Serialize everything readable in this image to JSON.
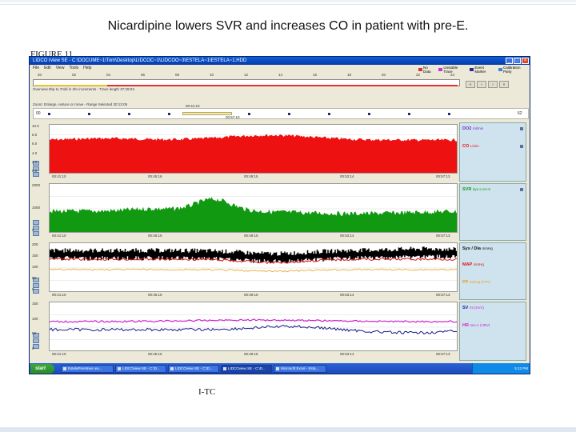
{
  "slide": {
    "title": "Nicardipine lowers SVR and increases CO in patient with pre-E.",
    "figure_label": "FIGURE 11",
    "footer": "I-TC"
  },
  "window": {
    "title": "LIDCO rview SE - C:\\DOCUME~1\\Tom\\Desktop\\LIDCOC~1\\LIDCOO~3\\ESTELA~1\\ESTELA~1.HDD",
    "menus": [
      "File",
      "Edit",
      "View",
      "Tools",
      "Help"
    ]
  },
  "legend": [
    {
      "label": "No Data",
      "color": "#d23a3a"
    },
    {
      "label": "Unstable Trace",
      "color": "#c837c8"
    },
    {
      "label": "Event Marker",
      "color": "#2a2a8a"
    },
    {
      "label": "Calibration Party",
      "color": "#3a8ad2"
    }
  ],
  "timeline": {
    "ticks": [
      "20",
      "02",
      "04",
      "06",
      "08",
      "10",
      "12",
      "14",
      "16",
      "18",
      "20",
      "22",
      "24"
    ],
    "info": "Overview 8hp to 7mbl in 2hr increments - Trace length 37:29:03"
  },
  "nav_buttons": [
    "«",
    "‹",
    "›",
    "»"
  ],
  "zoom": {
    "info": "Zoom: Enlarge, reduce or move - Range Selected 30:13:05",
    "left_value": "00",
    "right_value": "62",
    "time_start": "00:41:10",
    "time_end": "00:57:10"
  },
  "time_labels": [
    "00:41:10",
    "00:45:16",
    "00:49:15",
    "00:53:14",
    "00:57:13"
  ],
  "charts": [
    {
      "name": "co",
      "yticks": [
        "10.0",
        "8.0",
        "6.0",
        "4.0",
        "2.0",
        "0.0"
      ],
      "color": "#ee1111"
    },
    {
      "name": "svr",
      "yticks": [
        "2000",
        "1000",
        "0"
      ],
      "color": "#119911"
    },
    {
      "name": "pressure",
      "yticks": [
        "200",
        "150",
        "100",
        "50",
        "0"
      ],
      "color": "#000000"
    },
    {
      "name": "hr",
      "yticks": [
        "150",
        "100",
        "50",
        "0"
      ],
      "color": "#1a1a8a"
    }
  ],
  "panels": [
    {
      "entries": [
        {
          "label": "DO2",
          "unit": "ml/min",
          "color": "#7a2ab8"
        },
        {
          "label": "CO",
          "unit": "L/min",
          "color": "#ee1111"
        }
      ]
    },
    {
      "entries": [
        {
          "label": "SVR",
          "unit": "dyn.s.cm-5",
          "color": "#119911"
        }
      ]
    },
    {
      "entries": [
        {
          "label": "Sys / Dia",
          "unit": "mmHg",
          "color": "#111111"
        },
        {
          "label": "MAP",
          "unit": "mmHg",
          "color": "#dd1111"
        },
        {
          "label": "PP",
          "unit": "mmHg (PPV)",
          "color": "#e8a020"
        }
      ]
    },
    {
      "entries": [
        {
          "label": "SV",
          "unit": "ml (SVV)",
          "color": "#cc22cc"
        },
        {
          "label": "HR",
          "unit": "min-1 (HRV)",
          "color": "#cc22cc"
        }
      ]
    }
  ],
  "taskbar": {
    "start": "start",
    "buttons": [
      "EstelaPreHtnes rev...",
      "LIDCOview SE - C:\\D...",
      "LIDCOview SE - C:\\D...",
      "LIDCOview SE - C:\\D...",
      "Microsoft Excel - Esta..."
    ],
    "clock": "5:12 PM"
  }
}
